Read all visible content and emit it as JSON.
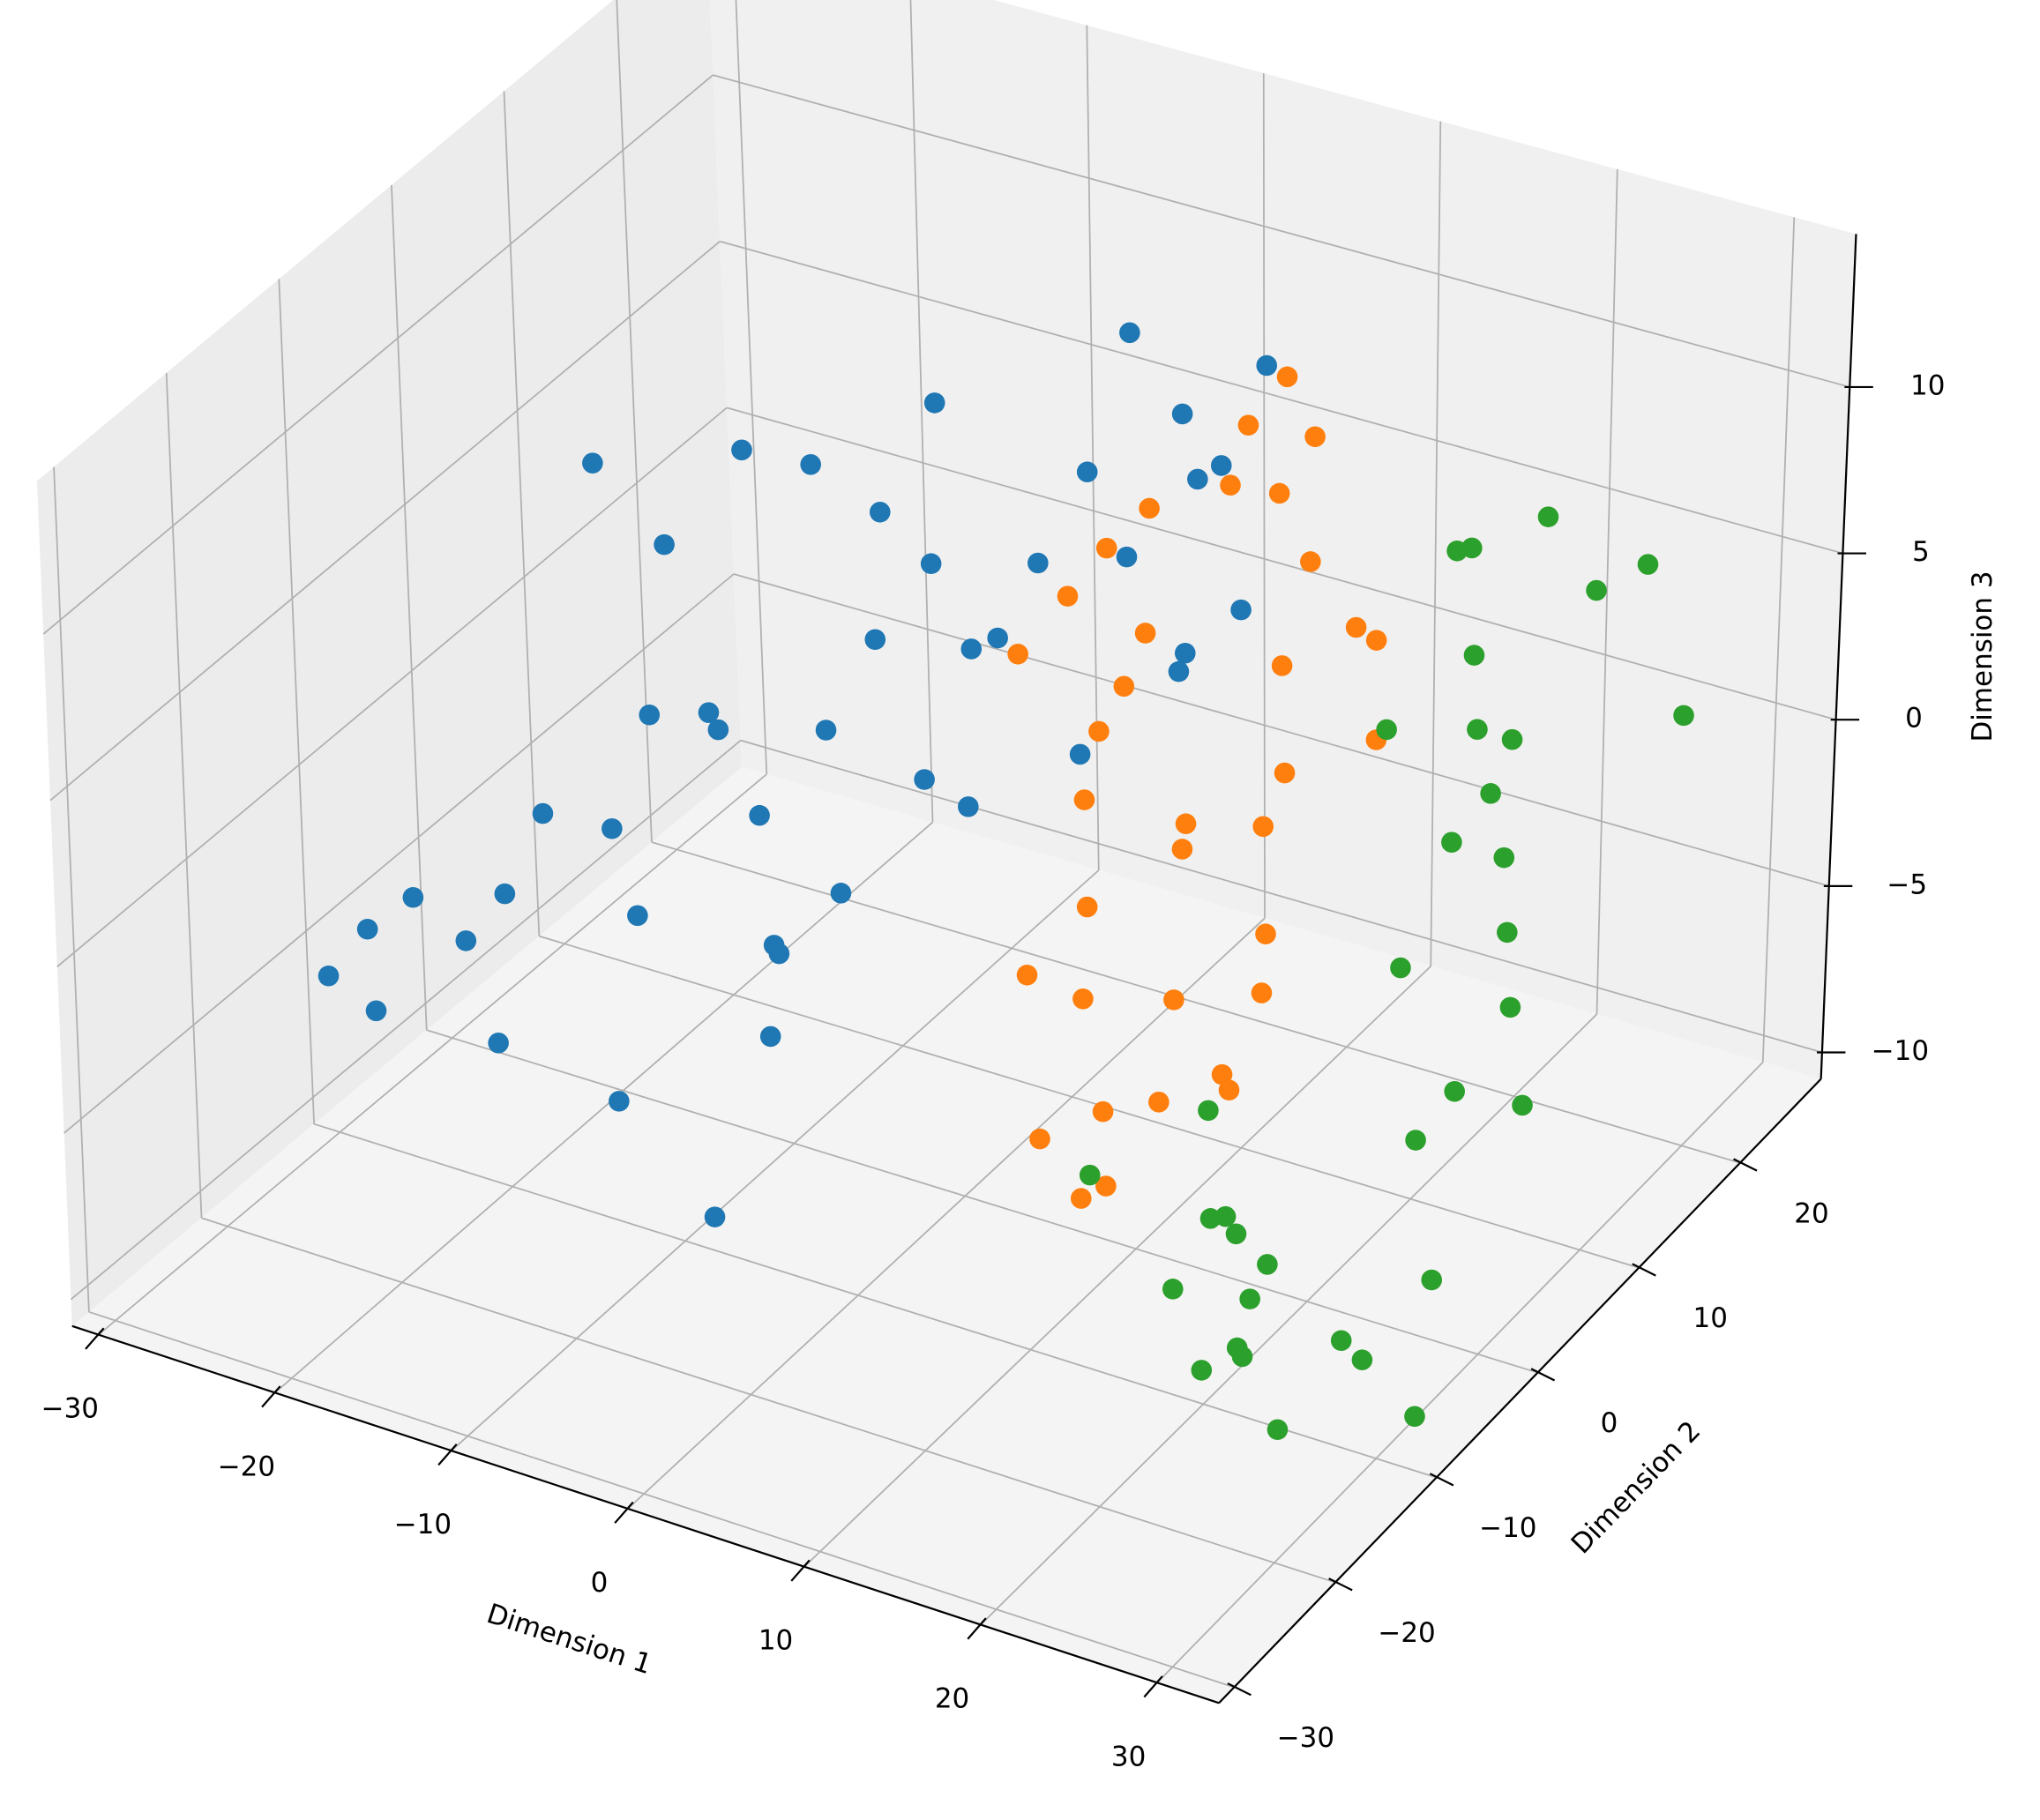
{
  "chart_data": {
    "type": "scatter3d",
    "xlabel": "Dimension 1",
    "ylabel": "Dimension 2",
    "zlabel": "Dimension 3",
    "xlim": [
      -31.5,
      33.5
    ],
    "ylim": [
      -31.5,
      28
    ],
    "zlim": [
      -10.8,
      14.6
    ],
    "xticks": [
      {
        "value": -30,
        "label": "−30"
      },
      {
        "value": -20,
        "label": "−20"
      },
      {
        "value": -10,
        "label": "−10"
      },
      0,
      10,
      20,
      30
    ],
    "yticks": [
      {
        "value": -30,
        "label": "−30"
      },
      {
        "value": -20,
        "label": "−20"
      },
      {
        "value": -10,
        "label": "−10"
      },
      0,
      10,
      20
    ],
    "zticks": [
      {
        "value": -10,
        "label": "−10"
      },
      {
        "value": -5,
        "label": "−5"
      },
      0,
      5,
      10
    ],
    "grid": true,
    "series": [
      {
        "color": "#1f77b4",
        "x": [
          -25,
          -24,
          -23,
          -22,
          -21,
          -20,
          -19,
          -18,
          -17,
          -16,
          -15,
          -14,
          -13,
          -12,
          -11,
          -10,
          -9,
          -8,
          -7,
          -6,
          -5,
          -4,
          -3,
          -2,
          -1,
          0,
          1,
          2,
          3,
          -24,
          -22,
          -20,
          -18,
          -16,
          -14,
          -12,
          -10,
          -8,
          -6,
          -4,
          -2,
          0,
          -15,
          -11,
          -7
        ],
        "y": [
          -18,
          -16,
          -17,
          -15,
          -12,
          -10,
          -8,
          -14,
          -5,
          -3,
          -6,
          0,
          2,
          -4,
          5,
          8,
          3,
          10,
          12,
          6,
          15,
          18,
          20,
          14,
          22,
          24,
          19,
          25,
          21,
          5,
          8,
          12,
          15,
          18,
          20,
          2,
          -2,
          16,
          10,
          22,
          25,
          20,
          -8,
          0,
          -12
        ],
        "z": [
          -3,
          -2,
          -4,
          -1,
          -3,
          -2,
          0,
          -5,
          -1,
          2,
          -3,
          1,
          -2,
          3,
          0,
          2,
          -4,
          4,
          1,
          -1,
          3,
          5,
          2,
          -2,
          6,
          4,
          0,
          7,
          1,
          6,
          3,
          5,
          4,
          2,
          5,
          -6,
          -7,
          0,
          -3,
          8,
          3,
          -1,
          -8,
          -5,
          -9
        ]
      },
      {
        "color": "#ff7f0e",
        "x": [
          0,
          1,
          2,
          3,
          4,
          5,
          6,
          7,
          8,
          9,
          10,
          11,
          12,
          13,
          14,
          15,
          16,
          17,
          18,
          2,
          4,
          6,
          8,
          10,
          12,
          14,
          16,
          3,
          7,
          11,
          15,
          5,
          9,
          13,
          17
        ],
        "y": [
          5,
          8,
          10,
          12,
          6,
          3,
          15,
          0,
          -2,
          18,
          4,
          -5,
          10,
          -8,
          7,
          12,
          2,
          -3,
          9,
          14,
          20,
          -4,
          -6,
          16,
          0,
          5,
          -2,
          10,
          18,
          -7,
          14,
          22,
          6,
          -3,
          0
        ],
        "z": [
          4,
          5,
          6,
          3,
          2,
          1,
          7,
          -1,
          -3,
          8,
          0,
          -5,
          4,
          -6,
          2,
          5,
          -1,
          -4,
          3,
          6,
          7,
          -2,
          -6,
          5,
          -3,
          1,
          -4,
          2,
          6,
          -7,
          4,
          8,
          0,
          -5,
          -2
        ]
      },
      {
        "color": "#2ca02c",
        "x": [
          16,
          18,
          20,
          22,
          24,
          26,
          28,
          30,
          32,
          17,
          19,
          21,
          23,
          25,
          27,
          29,
          31,
          20,
          24,
          28,
          32,
          22,
          26,
          30,
          18,
          21,
          25,
          29,
          23,
          27,
          31,
          19,
          26,
          30,
          24
        ],
        "y": [
          20,
          18,
          15,
          12,
          10,
          8,
          5,
          2,
          0,
          -5,
          -8,
          -10,
          -12,
          -15,
          -18,
          -20,
          -22,
          22,
          20,
          18,
          15,
          5,
          0,
          -5,
          10,
          -12,
          -16,
          -10,
          8,
          2,
          -8,
          -20,
          -24,
          -14,
          12
        ],
        "z": [
          5,
          6,
          4,
          3,
          2,
          1,
          0,
          -1,
          -3,
          -4,
          -6,
          -5,
          -8,
          -7,
          -4,
          -2,
          -6,
          6,
          5,
          7,
          4,
          -2,
          -5,
          -7,
          3,
          -9,
          -3,
          -8,
          1,
          -4,
          -10,
          -1,
          -2,
          -6,
          3
        ]
      }
    ]
  }
}
